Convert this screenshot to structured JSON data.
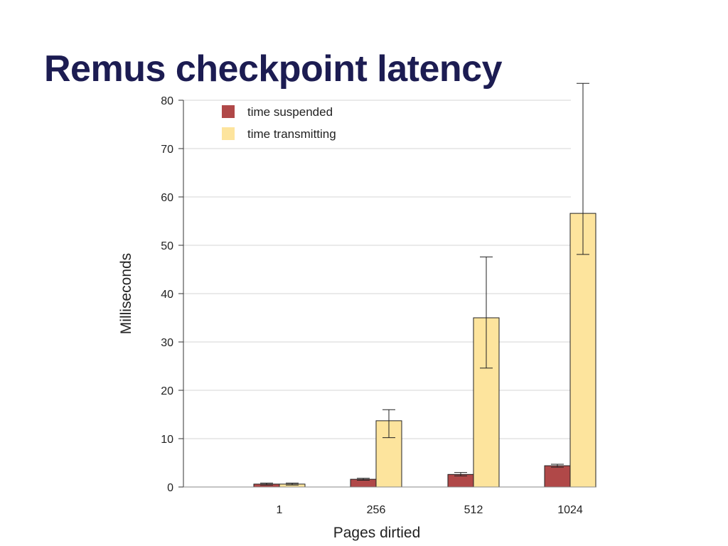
{
  "slide": {
    "title": "Remus checkpoint latency"
  },
  "chart_data": {
    "type": "bar",
    "title": "",
    "xlabel": "Pages dirtied",
    "ylabel": "Milliseconds",
    "ylim": [
      0,
      80
    ],
    "yticks": [
      0,
      10,
      20,
      30,
      40,
      50,
      60,
      70,
      80
    ],
    "grid": true,
    "legend_position": "top-left",
    "categories": [
      "1",
      "256",
      "512",
      "1024"
    ],
    "series": [
      {
        "name": "time suspended",
        "color": "#b04848",
        "values": [
          0.6,
          1.6,
          2.6,
          4.4
        ],
        "error_low": [
          0.4,
          1.4,
          2.3,
          4.1
        ],
        "error_high": [
          0.8,
          1.8,
          3.0,
          4.7
        ]
      },
      {
        "name": "time transmitting",
        "color": "#fde49d",
        "values": [
          0.6,
          13.7,
          35.0,
          56.6
        ],
        "error_low": [
          0.4,
          10.2,
          24.6,
          48.1
        ],
        "error_high": [
          0.8,
          16.0,
          47.6,
          83.5
        ]
      }
    ]
  }
}
